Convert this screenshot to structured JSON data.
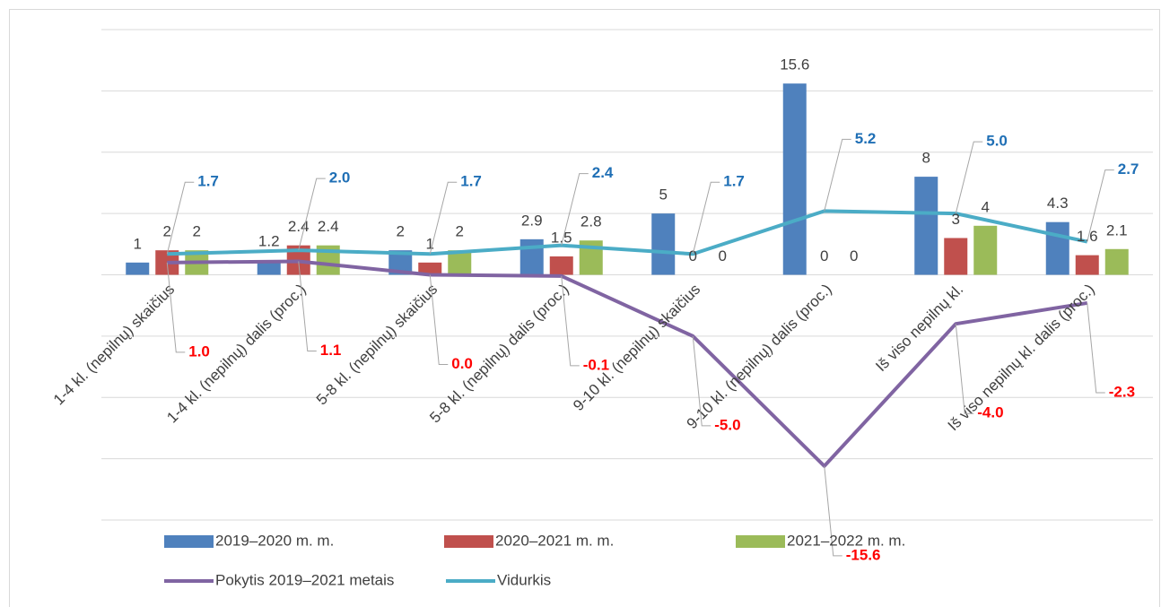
{
  "chart_data": {
    "type": "combo",
    "categories": [
      "1-4 kl. (nepilnų) skaičius",
      "1-4 kl. (nepilnų) dalis (proc.)",
      "5-8 kl. (nepilnų) skaičius",
      "5-8 kl. (nepilnų) dalis (proc.)",
      "9-10 kl. (nepilnų) skaičius",
      "9-10 kl. (nepilnų) dalis (proc.)",
      "Iš viso nepilnų kl.",
      "Iš viso nepilnų kl. dalis (proc.)"
    ],
    "series": [
      {
        "name": "2019–2020 m. m.",
        "type": "bar",
        "color": "#4f81bd",
        "values": [
          1,
          1.2,
          2,
          2.9,
          5,
          15.6,
          8,
          4.3
        ]
      },
      {
        "name": "2020–2021 m. m.",
        "type": "bar",
        "color": "#c0504d",
        "values": [
          2,
          2.4,
          1,
          1.5,
          0,
          0,
          3,
          1.6
        ]
      },
      {
        "name": "2021–2022 m. m.",
        "type": "bar",
        "color": "#9bbb59",
        "values": [
          2,
          2.4,
          2,
          2.8,
          0,
          0,
          4,
          2.1
        ]
      },
      {
        "name": "Pokytis 2019–2021 metais",
        "type": "line",
        "color": "#8064a2",
        "label_color": "#ff0000",
        "values": [
          1,
          1.1,
          0,
          -0.1,
          -5,
          -15.6,
          -4,
          -2.3
        ],
        "value_labels": [
          "1.0",
          "1.1",
          "0.0",
          "-0.1",
          "-5.0",
          "-15.6",
          "-4.0",
          "-2.3"
        ]
      },
      {
        "name": "Vidurkis",
        "type": "line",
        "color": "#4bacc6",
        "label_color": "#1f6fb5",
        "values": [
          1.7,
          2,
          1.7,
          2.4,
          1.7,
          5.2,
          5,
          2.7
        ],
        "value_labels": [
          "1.7",
          "2.0",
          "1.7",
          "2.4",
          "1.7",
          "5.2",
          "5.0",
          "2.7"
        ]
      }
    ],
    "ylim": [
      -20,
      20
    ],
    "yticks": [
      -20,
      -15,
      -10,
      -5,
      0,
      5,
      10,
      15,
      20
    ],
    "grid": true
  }
}
